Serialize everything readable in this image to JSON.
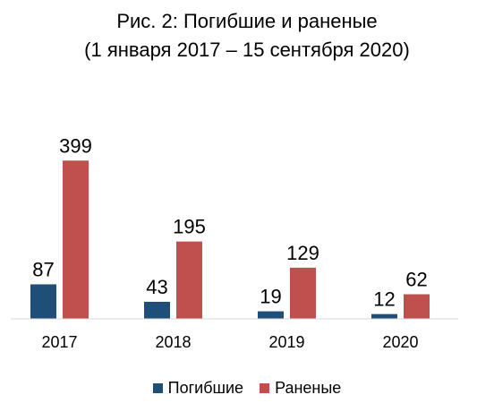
{
  "chart_data": {
    "type": "bar",
    "title": "Рис. 2: Погибшие и раненые",
    "subtitle": "(1 января 2017 – 15 сентября 2020)",
    "categories": [
      "2017",
      "2018",
      "2019",
      "2020"
    ],
    "series": [
      {
        "name": "Погибшие",
        "values": [
          87,
          43,
          19,
          12
        ],
        "color": "#1f4e79"
      },
      {
        "name": "Раненые",
        "values": [
          399,
          195,
          129,
          62
        ],
        "color": "#c0504d"
      }
    ],
    "ylim": [
      0,
      420
    ],
    "xlabel": "",
    "ylabel": "",
    "grid": false,
    "legend_position": "bottom",
    "data_labels": true
  }
}
